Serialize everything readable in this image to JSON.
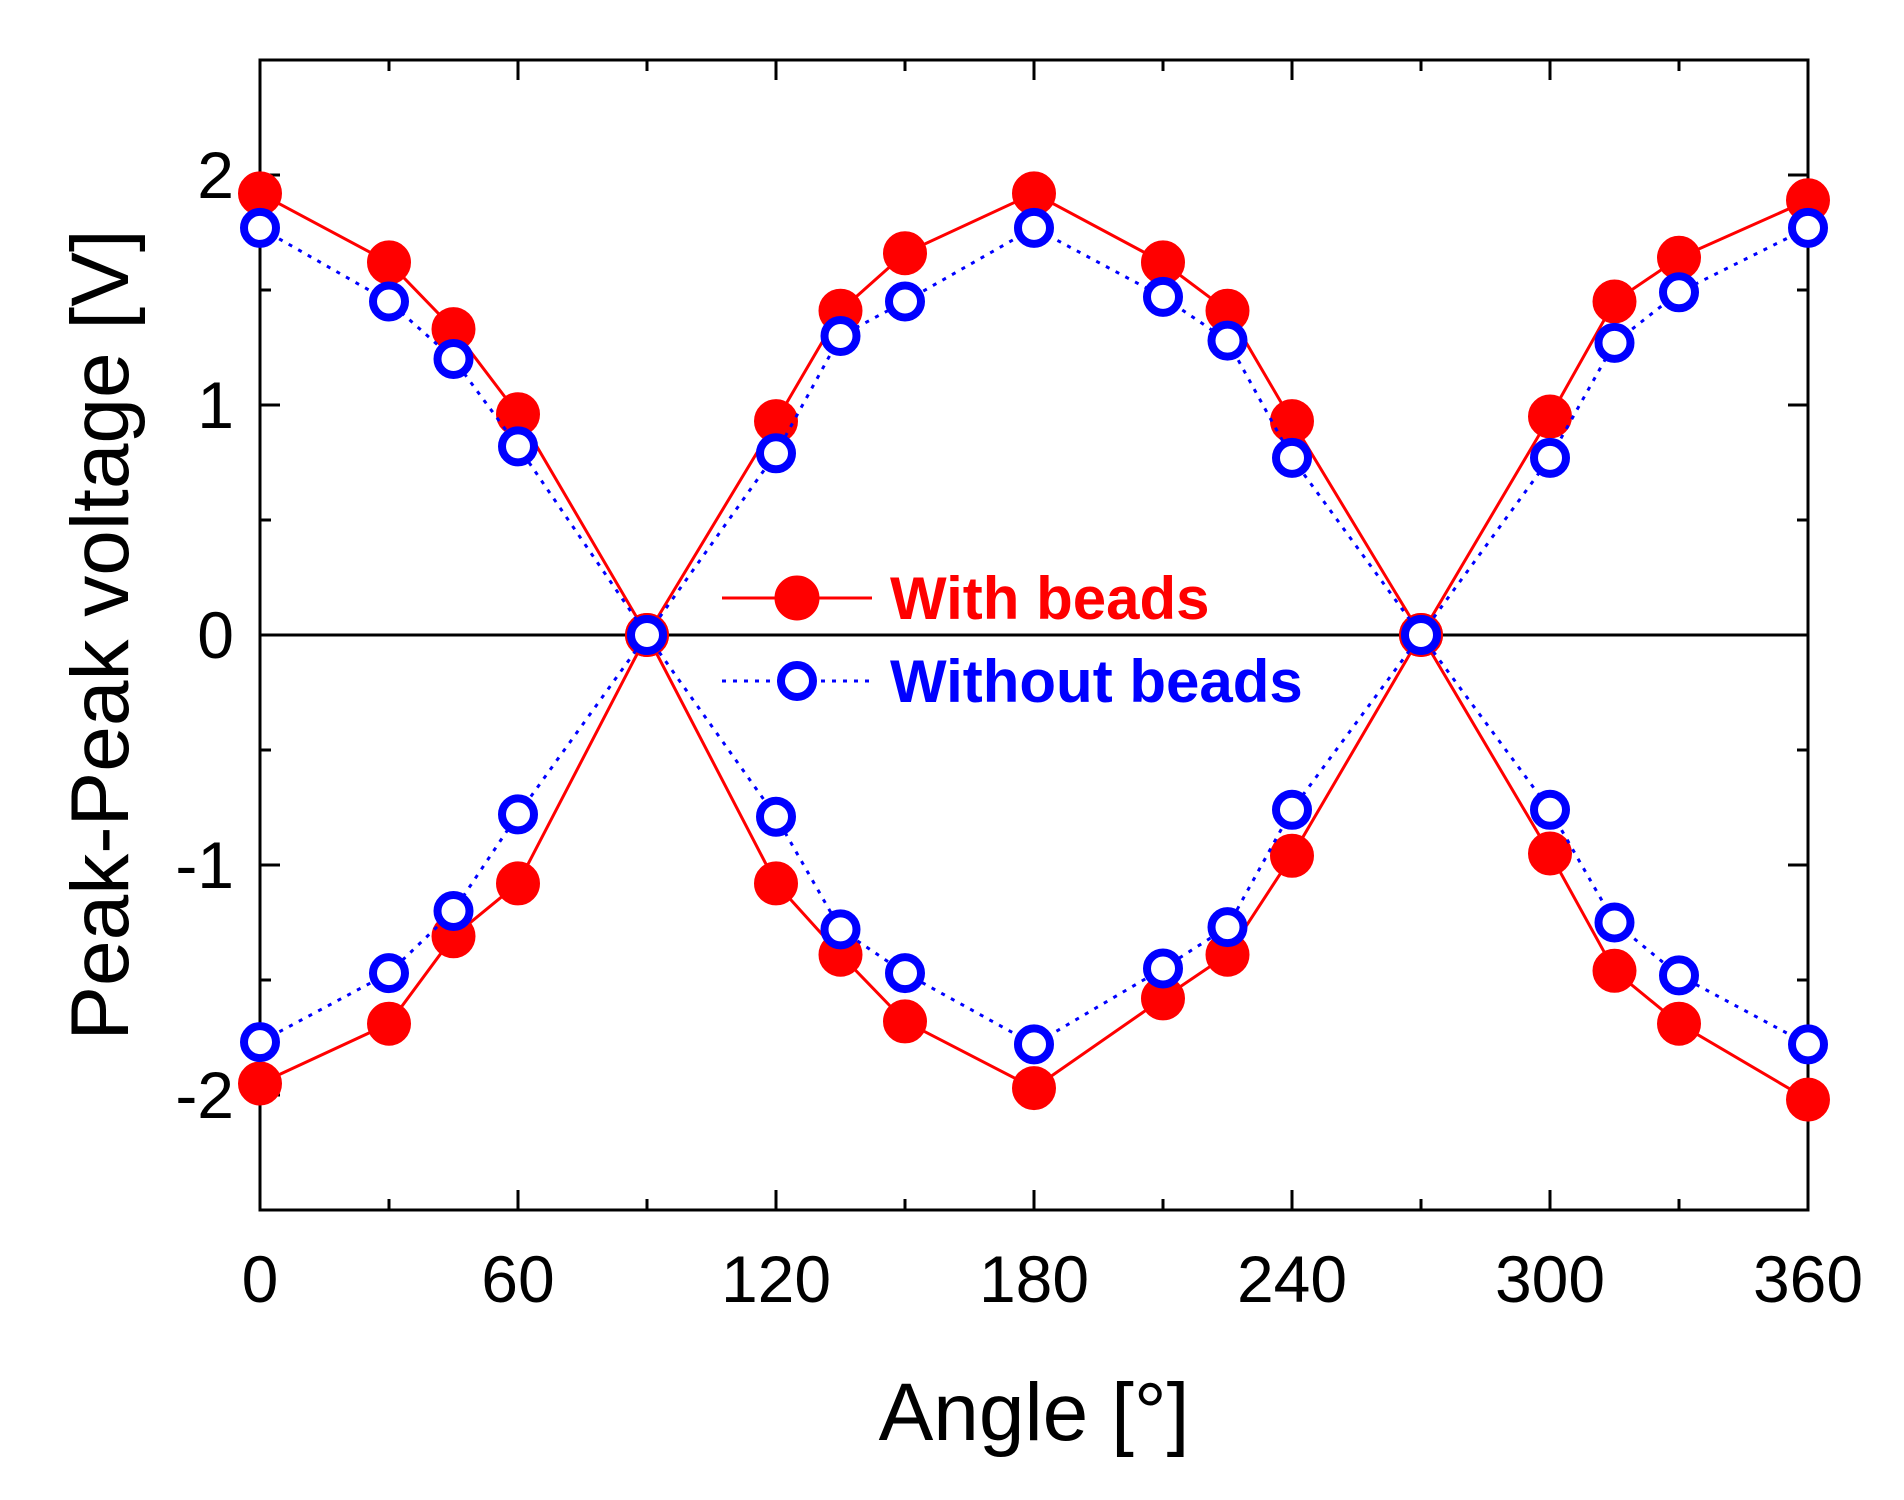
{
  "chart_data": {
    "type": "line",
    "title": "",
    "xlabel": "Angle [°]",
    "ylabel": "Peak-Peak voltage [V]",
    "xlim": [
      0,
      360
    ],
    "ylim": [
      -2.5,
      2.5
    ],
    "xticks": [
      0,
      60,
      120,
      180,
      240,
      300,
      360
    ],
    "xtick_labels": [
      "0",
      "60",
      "120",
      "180",
      "240",
      "300",
      "360"
    ],
    "yticks": [
      -2,
      -1,
      0,
      1,
      2
    ],
    "ytick_labels": [
      "-2",
      "-1",
      "0",
      "1",
      "2"
    ],
    "grid": false,
    "zero_line": true,
    "legend_position": "center",
    "series": [
      {
        "name": "With beads",
        "color": "#ff0000",
        "marker": "filled-circle",
        "linestyle": "solid",
        "branches": [
          {
            "x": [
              0,
              30,
              45,
              60,
              90,
              120,
              135,
              150,
              180,
              210,
              225,
              240,
              270,
              300,
              315,
              330,
              360
            ],
            "y": [
              1.92,
              1.62,
              1.33,
              0.96,
              0,
              0.93,
              1.41,
              1.66,
              1.92,
              1.62,
              1.41,
              0.93,
              0,
              0.95,
              1.45,
              1.64,
              1.89
            ]
          },
          {
            "x": [
              0,
              30,
              45,
              60,
              90,
              120,
              135,
              150,
              180,
              210,
              225,
              240,
              270,
              300,
              315,
              330,
              360
            ],
            "y": [
              -1.95,
              -1.69,
              -1.31,
              -1.08,
              0,
              -1.08,
              -1.39,
              -1.68,
              -1.97,
              -1.58,
              -1.39,
              -0.96,
              0,
              -0.95,
              -1.46,
              -1.69,
              -2.02
            ]
          }
        ]
      },
      {
        "name": "Without beads",
        "color": "#0000ff",
        "marker": "open-circle",
        "linestyle": "dotted",
        "branches": [
          {
            "x": [
              0,
              30,
              45,
              60,
              90,
              120,
              135,
              150,
              180,
              210,
              225,
              240,
              270,
              300,
              315,
              330,
              360
            ],
            "y": [
              1.77,
              1.45,
              1.2,
              0.82,
              0,
              0.79,
              1.3,
              1.45,
              1.77,
              1.47,
              1.28,
              0.77,
              0,
              0.77,
              1.27,
              1.49,
              1.77
            ]
          },
          {
            "x": [
              0,
              30,
              45,
              60,
              90,
              120,
              135,
              150,
              180,
              210,
              225,
              240,
              270,
              300,
              315,
              330,
              360
            ],
            "y": [
              -1.77,
              -1.47,
              -1.2,
              -0.78,
              0,
              -0.79,
              -1.28,
              -1.47,
              -1.78,
              -1.45,
              -1.27,
              -0.76,
              0,
              -0.76,
              -1.25,
              -1.48,
              -1.78
            ]
          }
        ]
      }
    ]
  }
}
